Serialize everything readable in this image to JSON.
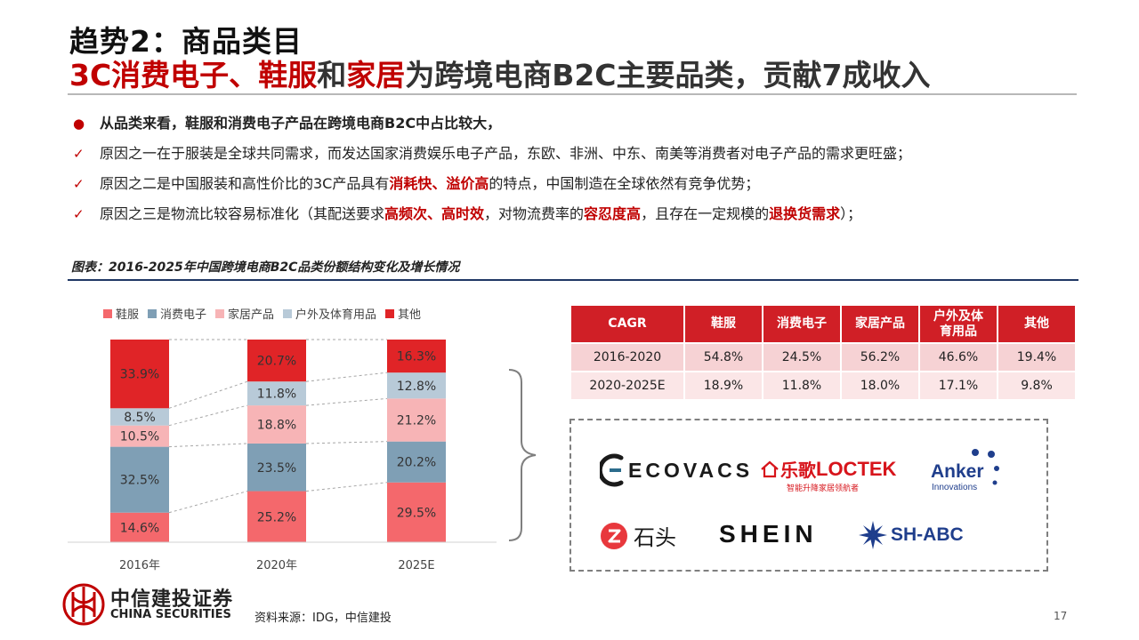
{
  "title": {
    "line1": "趋势2：商品类目",
    "line2_parts": [
      {
        "text": "3C消费电子、",
        "red": true
      },
      {
        "text": "鞋服",
        "red": true
      },
      {
        "text": "和",
        "red": false
      },
      {
        "text": "家居",
        "red": true
      },
      {
        "text": "为跨境电商B2C主要品类，贡献7成收入",
        "red": false
      }
    ]
  },
  "bullets": [
    {
      "marker": "●",
      "first": true,
      "parts": [
        {
          "t": "从品类来看，鞋服和消费电子产品在跨境电商B2C中占比较大，",
          "h": false
        }
      ]
    },
    {
      "marker": "✓",
      "first": false,
      "parts": [
        {
          "t": "原因之一在于服装是全球共同需求，而发达国家消费娱乐电子产品，东欧、非洲、中东、南美等消费者对电子产品的需求更旺盛；",
          "h": false
        }
      ]
    },
    {
      "marker": "✓",
      "first": false,
      "parts": [
        {
          "t": "原因之二是中国服装和高性价比的3C产品具有",
          "h": false
        },
        {
          "t": "消耗快、溢价高",
          "h": true
        },
        {
          "t": "的特点，中国制造在全球依然有竞争优势；",
          "h": false
        }
      ]
    },
    {
      "marker": "✓",
      "first": false,
      "parts": [
        {
          "t": "原因之三是物流比较容易标准化（其配送要求",
          "h": false
        },
        {
          "t": "高频次、高时效",
          "h": true
        },
        {
          "t": "，对物流费率的",
          "h": false
        },
        {
          "t": "容忍度高",
          "h": true
        },
        {
          "t": "，且存在一定规模的",
          "h": false
        },
        {
          "t": "退换货需求",
          "h": true
        },
        {
          "t": "）；",
          "h": false
        }
      ]
    }
  ],
  "figure_caption": "图表：2016-2025年中国跨境电商B2C品类份额结构变化及增长情况",
  "chart_data": {
    "type": "bar",
    "stacked": true,
    "categories": [
      "2016年",
      "2020年",
      "2025E"
    ],
    "series": [
      {
        "name": "鞋服",
        "values": [
          14.6,
          25.2,
          29.5
        ],
        "color": "#f4686c"
      },
      {
        "name": "消费电子",
        "values": [
          32.5,
          23.5,
          20.2
        ],
        "color": "#7f9fb5"
      },
      {
        "name": "家居产品",
        "values": [
          10.5,
          18.8,
          21.2
        ],
        "color": "#f7b4b6"
      },
      {
        "name": "户外及体育用品",
        "values": [
          8.5,
          11.8,
          12.8
        ],
        "color": "#b8cad8"
      },
      {
        "name": "其他",
        "values": [
          33.9,
          20.7,
          16.3
        ],
        "color": "#e02427"
      }
    ],
    "value_format": "{v}%",
    "legend_position": "top",
    "ylim": [
      0,
      100
    ],
    "connector_lines": true
  },
  "cagr_table": {
    "headers": [
      "CAGR",
      "鞋服",
      "消费电子",
      "家居产品",
      "户外及体\n育用品",
      "其他"
    ],
    "rows": [
      [
        "2016-2020",
        "54.8%",
        "24.5%",
        "56.2%",
        "46.6%",
        "19.4%"
      ],
      [
        "2020-2025E",
        "18.9%",
        "11.8%",
        "18.0%",
        "17.1%",
        "9.8%"
      ]
    ]
  },
  "logos": {
    "ecovacs": "ECOVACS",
    "loctek_cn": "乐歌",
    "loctek_en": "LOCTEK",
    "loctek_tagline": "智能升降家居领航者",
    "anker": "Anker",
    "anker_sub": "Innovations",
    "roborock": "石头",
    "shein": "SHEIN",
    "shabc": "SH-ABC",
    "colors": {
      "red": "#d7141b",
      "navy": "#1f3e8c",
      "dark": "#1a1a1a",
      "teal": "#2c6c8c"
    }
  },
  "footer": {
    "company_cn": "中信建投证券",
    "company_en": "CHINA SECURITIES",
    "source": "资料来源：IDG，中信建投",
    "page_number": "17"
  },
  "colors": {
    "accent_red": "#c00000",
    "table_header": "#d01f26",
    "rule_blue": "#1f3864"
  }
}
